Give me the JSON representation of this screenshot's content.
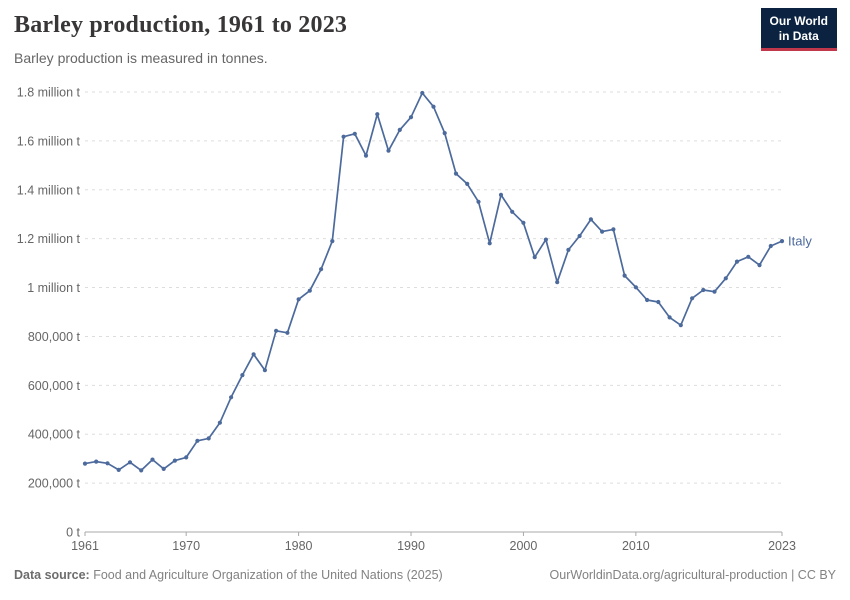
{
  "header": {
    "title": "Barley production, 1961 to 2023",
    "subtitle": "Barley production is measured in tonnes.",
    "logo_line1": "Our World",
    "logo_line2": "in Data"
  },
  "footer": {
    "source_label": "Data source:",
    "source_text": " Food and Agriculture Organization of the United Nations (2025)",
    "attribution": "OurWorldinData.org/agricultural-production | CC BY"
  },
  "colors": {
    "line": "#4C6A9C",
    "series_label": "#4C6A9C",
    "grid": "#dddddd",
    "axis": "#a8a8a8",
    "tick_text": "#666666",
    "logo_bg": "#0b2341",
    "logo_red": "#c0364b"
  },
  "chart_data": {
    "type": "line",
    "title": "Barley production, 1961 to 2023",
    "subtitle": "Barley production is measured in tonnes.",
    "entity": "Italy",
    "unit": "t",
    "grid": true,
    "legend_position": "end-of-line",
    "xlim": [
      1961,
      2023
    ],
    "ylim": [
      0,
      1800000
    ],
    "x": [
      1961,
      1962,
      1963,
      1964,
      1965,
      1966,
      1967,
      1968,
      1969,
      1970,
      1971,
      1972,
      1973,
      1974,
      1975,
      1976,
      1977,
      1978,
      1979,
      1980,
      1981,
      1982,
      1983,
      1984,
      1985,
      1986,
      1987,
      1988,
      1989,
      1990,
      1991,
      1992,
      1993,
      1994,
      1995,
      1996,
      1997,
      1998,
      1999,
      2000,
      2001,
      2002,
      2003,
      2004,
      2005,
      2006,
      2007,
      2008,
      2009,
      2010,
      2011,
      2012,
      2013,
      2014,
      2015,
      2016,
      2017,
      2018,
      2019,
      2020,
      2021,
      2022,
      2023
    ],
    "series": [
      {
        "name": "Italy",
        "values": [
          280000,
          288000,
          281000,
          254000,
          285000,
          252000,
          296000,
          258000,
          292000,
          305000,
          373000,
          383000,
          447000,
          551000,
          642000,
          727000,
          662000,
          823000,
          815000,
          952000,
          987000,
          1075000,
          1190000,
          1617000,
          1629000,
          1540000,
          1709000,
          1560000,
          1645000,
          1697000,
          1796000,
          1740000,
          1632000,
          1466000,
          1424000,
          1351000,
          1181000,
          1379000,
          1310000,
          1265000,
          1124000,
          1196000,
          1022000,
          1154000,
          1211000,
          1279000,
          1229000,
          1238000,
          1049000,
          1001000,
          949000,
          941000,
          878000,
          846000,
          956000,
          990000,
          983000,
          1038000,
          1106000,
          1126000,
          1092000,
          1170000,
          1190000
        ]
      }
    ],
    "yticks": [
      {
        "value": 0,
        "label": "0 t"
      },
      {
        "value": 200000,
        "label": "200,000 t"
      },
      {
        "value": 400000,
        "label": "400,000 t"
      },
      {
        "value": 600000,
        "label": "600,000 t"
      },
      {
        "value": 800000,
        "label": "800,000 t"
      },
      {
        "value": 1000000,
        "label": "1 million t"
      },
      {
        "value": 1200000,
        "label": "1.2 million t"
      },
      {
        "value": 1400000,
        "label": "1.4 million t"
      },
      {
        "value": 1600000,
        "label": "1.6 million t"
      },
      {
        "value": 1800000,
        "label": "1.8 million t"
      }
    ],
    "xticks": [
      {
        "value": 1961,
        "label": "1961"
      },
      {
        "value": 1970,
        "label": "1970"
      },
      {
        "value": 1980,
        "label": "1980"
      },
      {
        "value": 1990,
        "label": "1990"
      },
      {
        "value": 2000,
        "label": "2000"
      },
      {
        "value": 2010,
        "label": "2010"
      },
      {
        "value": 2023,
        "label": "2023"
      }
    ]
  }
}
